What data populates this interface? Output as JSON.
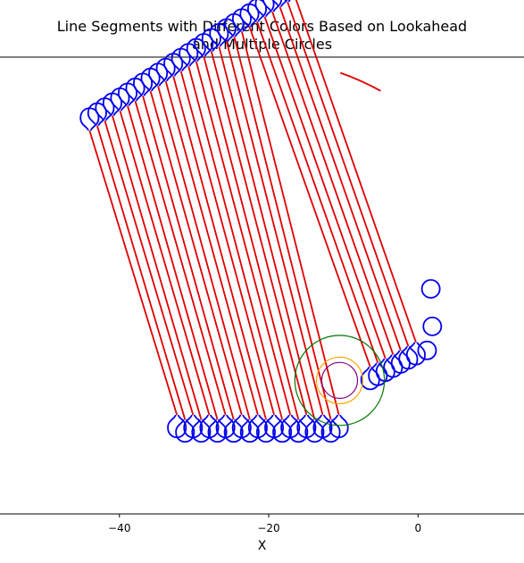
{
  "chart_data": {
    "type": "line",
    "title": "Line Segments with Different Colors Based on Lookahead\nand Multiple Circles",
    "xlabel": "X",
    "ylabel": "",
    "xlim": [
      -56,
      14.2
    ],
    "ylim": [
      -9.5,
      51.4
    ],
    "xticks": [
      -40,
      -20,
      0
    ],
    "grid": false,
    "legend": "none",
    "colors": {
      "straight": "#e00000",
      "turn": "#0000ee",
      "circle_outer": "#007700",
      "circle_middle": "#ffa500",
      "circle_inner": "#800080",
      "spine": "#000000"
    },
    "straight_segments": {
      "count": 28,
      "top_start": [
        -44.0,
        41.6
      ],
      "top_step": [
        1.02,
        0.66
      ],
      "bottom_start": [
        -32.3,
        3.7
      ],
      "bottom_step": [
        1.085,
        0.0
      ],
      "bottom_row2_start_index": 21,
      "bottom_row2_start": [
        -6.4,
        10.1
      ],
      "bottom_row2_step": [
        1.02,
        0.55
      ]
    },
    "turn_loops": {
      "radius": 1.2,
      "neck": 0.6
    },
    "tail_segment": {
      "points": [
        [
          -10.4,
          49.3
        ],
        [
          -7.8,
          48.4
        ],
        [
          -5.0,
          46.9
        ]
      ]
    },
    "circles": [
      {
        "name": "outer",
        "center": [
          -10.5,
          8.3
        ],
        "radius": 6.0
      },
      {
        "name": "middle",
        "center": [
          -10.5,
          8.3
        ],
        "radius": 3.1
      },
      {
        "name": "inner",
        "center": [
          -10.5,
          8.3
        ],
        "radius": 2.4
      }
    ]
  }
}
